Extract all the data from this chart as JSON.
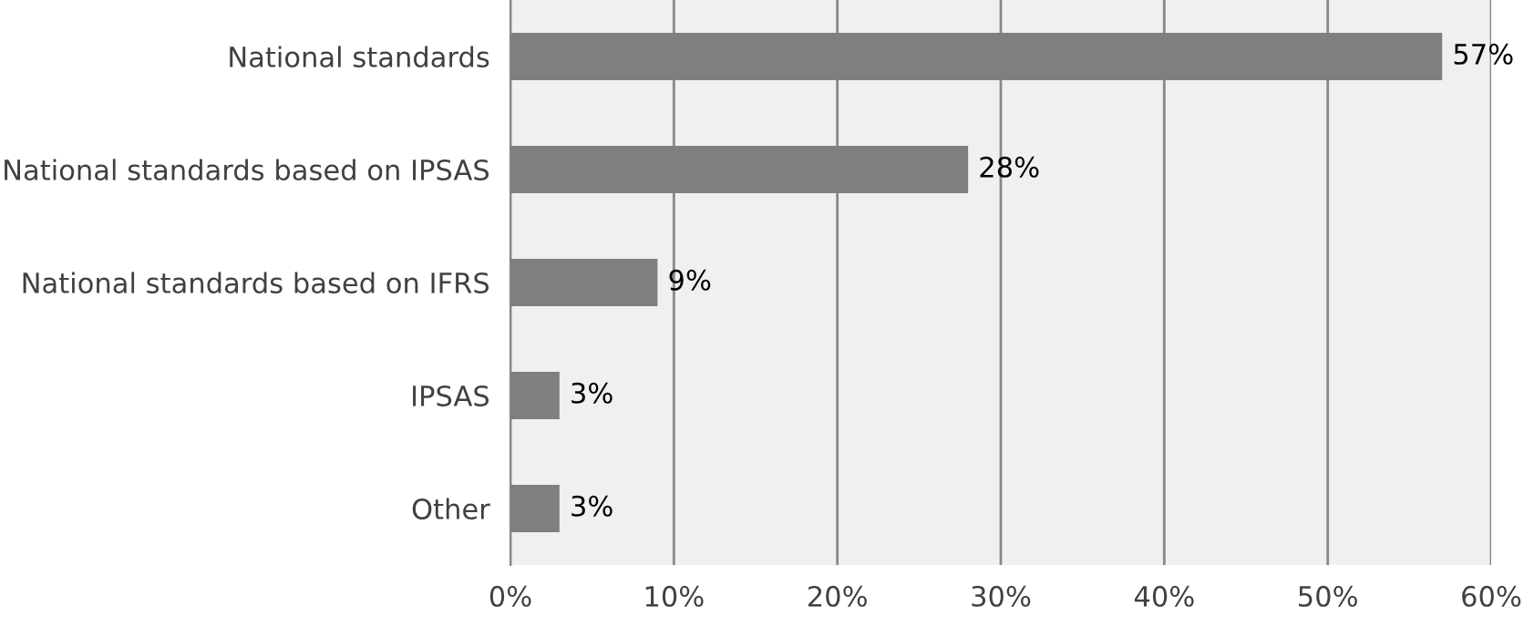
{
  "chart_data": {
    "type": "bar",
    "orientation": "horizontal",
    "categories": [
      "National standards",
      "National standards based on IPSAS",
      "National standards based on IFRS",
      "IPSAS",
      "Other"
    ],
    "values": [
      57,
      28,
      9,
      3,
      3
    ],
    "value_labels": [
      "57%",
      "28%",
      "9%",
      "3%",
      "3%"
    ],
    "color": "#7f7f7f",
    "xlim": [
      0,
      60
    ],
    "xticks": [
      {
        "value": 0,
        "label": "0%"
      },
      {
        "value": 10,
        "label": "10%"
      },
      {
        "value": 20,
        "label": "20%"
      },
      {
        "value": 30,
        "label": "30%"
      },
      {
        "value": 40,
        "label": "40%"
      },
      {
        "value": 50,
        "label": "50%"
      },
      {
        "value": 60,
        "label": "60%"
      }
    ],
    "grid": "x"
  }
}
